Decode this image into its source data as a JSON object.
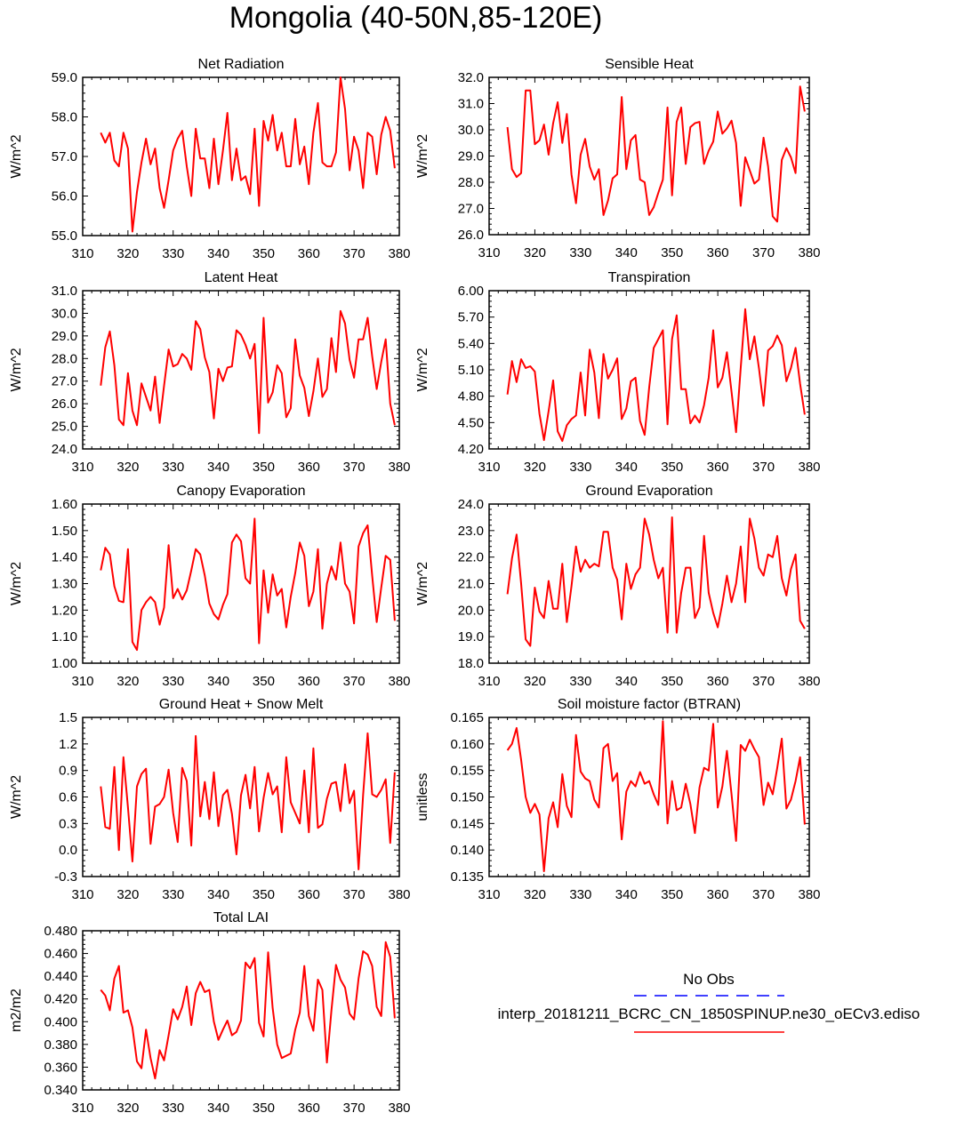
{
  "title": "Mongolia (40-50N,85-120E)",
  "colors": {
    "model": "#ff0000",
    "obs": "#0000ff",
    "frame": "#000000"
  },
  "legend": {
    "obs_label": "No Obs",
    "model_label": "interp_20181211_BCRC_CN_1850SPINUP.ne30_oECv3.ediso"
  },
  "chart_data": [
    {
      "type": "line",
      "title": "Net Radiation",
      "ylabel": "W/m^2",
      "xlim": [
        310,
        380
      ],
      "ylim": [
        55.0,
        59.0
      ],
      "xticks": [
        "310",
        "320",
        "330",
        "340",
        "350",
        "360",
        "370",
        "380"
      ],
      "yticks": [
        "55.0",
        "56.0",
        "57.0",
        "58.0",
        "59.0"
      ],
      "x_start": 314,
      "x_step": 1,
      "series": [
        {
          "values": [
            57.6,
            57.35,
            57.6,
            56.9,
            56.75,
            57.6,
            57.2,
            55.1,
            56.1,
            56.85,
            57.45,
            56.8,
            57.2,
            56.2,
            55.7,
            56.4,
            57.15,
            57.45,
            57.65,
            56.75,
            56.0,
            57.7,
            56.95,
            56.95,
            56.2,
            57.45,
            56.3,
            57.15,
            58.1,
            56.4,
            57.2,
            56.4,
            56.5,
            56.05,
            57.7,
            55.75,
            57.9,
            57.4,
            58.05,
            57.15,
            57.6,
            56.75,
            56.75,
            57.95,
            56.8,
            57.25,
            56.3,
            57.6,
            58.35,
            56.85,
            56.75,
            56.75,
            57.1,
            59.0,
            58.2,
            56.65,
            57.5,
            57.15,
            56.2,
            57.6,
            57.5,
            56.55,
            57.55,
            58.0,
            57.65,
            56.7
          ]
        }
      ]
    },
    {
      "type": "line",
      "title": "Sensible Heat",
      "ylabel": "W/m^2",
      "xlim": [
        310,
        380
      ],
      "ylim": [
        26.0,
        32.0
      ],
      "xticks": [
        "310",
        "320",
        "330",
        "340",
        "350",
        "360",
        "370",
        "380"
      ],
      "yticks": [
        "26.0",
        "27.0",
        "28.0",
        "29.0",
        "30.0",
        "31.0",
        "32.0"
      ],
      "x_start": 314,
      "x_step": 1,
      "series": [
        {
          "values": [
            30.1,
            28.5,
            28.2,
            28.35,
            31.5,
            31.5,
            29.45,
            29.6,
            30.2,
            29.05,
            30.25,
            31.05,
            29.5,
            30.6,
            28.3,
            27.2,
            29.05,
            29.65,
            28.6,
            28.1,
            28.5,
            26.75,
            27.3,
            28.15,
            28.3,
            31.25,
            28.5,
            29.6,
            29.8,
            28.1,
            28.0,
            26.75,
            27.05,
            27.6,
            28.1,
            30.85,
            27.5,
            30.3,
            30.85,
            28.7,
            30.1,
            30.25,
            30.3,
            28.7,
            29.2,
            29.55,
            30.7,
            29.85,
            30.05,
            30.35,
            29.5,
            27.1,
            28.95,
            28.45,
            27.95,
            28.1,
            29.7,
            28.6,
            26.7,
            26.5,
            28.85,
            29.3,
            28.95,
            28.35,
            31.65,
            30.7
          ]
        }
      ]
    },
    {
      "type": "line",
      "title": "Latent Heat",
      "ylabel": "W/m^2",
      "xlim": [
        310,
        380
      ],
      "ylim": [
        24.0,
        31.0
      ],
      "xticks": [
        "310",
        "320",
        "330",
        "340",
        "350",
        "360",
        "370",
        "380"
      ],
      "yticks": [
        "24.0",
        "25.0",
        "26.0",
        "27.0",
        "28.0",
        "29.0",
        "30.0",
        "31.0"
      ],
      "x_start": 314,
      "x_step": 1,
      "series": [
        {
          "values": [
            26.8,
            28.5,
            29.2,
            27.7,
            25.3,
            25.05,
            27.35,
            25.7,
            25.05,
            26.9,
            26.3,
            25.7,
            27.2,
            25.15,
            26.8,
            28.4,
            27.65,
            27.75,
            28.2,
            28.0,
            27.5,
            29.65,
            29.3,
            28.05,
            27.4,
            25.35,
            27.55,
            27.0,
            27.6,
            27.65,
            29.25,
            29.05,
            28.6,
            28.0,
            28.65,
            24.7,
            29.8,
            26.05,
            26.5,
            27.7,
            27.35,
            25.4,
            25.8,
            28.85,
            27.25,
            26.7,
            25.45,
            26.55,
            28.0,
            26.3,
            26.65,
            28.9,
            27.4,
            30.1,
            29.55,
            27.95,
            27.15,
            28.85,
            28.85,
            29.8,
            28.1,
            26.65,
            27.85,
            28.85,
            26.0,
            25.05
          ]
        }
      ]
    },
    {
      "type": "line",
      "title": "Transpiration",
      "ylabel": "W/m^2",
      "xlim": [
        310,
        380
      ],
      "ylim": [
        4.2,
        6.0
      ],
      "xticks": [
        "310",
        "320",
        "330",
        "340",
        "350",
        "360",
        "370",
        "380"
      ],
      "yticks": [
        "4.20",
        "4.50",
        "4.80",
        "5.10",
        "5.40",
        "5.70",
        "6.00"
      ],
      "x_start": 314,
      "x_step": 1,
      "series": [
        {
          "values": [
            4.82,
            5.2,
            4.96,
            5.22,
            5.12,
            5.14,
            5.08,
            4.6,
            4.3,
            4.63,
            4.98,
            4.4,
            4.29,
            4.47,
            4.54,
            4.58,
            5.07,
            4.58,
            5.33,
            5.07,
            4.55,
            5.28,
            5.0,
            5.1,
            5.23,
            4.54,
            4.66,
            4.97,
            5.01,
            4.52,
            4.36,
            4.9,
            5.35,
            5.45,
            5.55,
            4.48,
            5.45,
            5.72,
            4.88,
            4.88,
            4.49,
            4.58,
            4.5,
            4.7,
            5.01,
            5.55,
            4.9,
            5.01,
            5.3,
            4.85,
            4.39,
            5.12,
            5.79,
            5.22,
            5.48,
            5.12,
            4.69,
            5.32,
            5.37,
            5.49,
            5.38,
            4.97,
            5.12,
            5.35,
            4.94,
            4.59
          ]
        }
      ]
    },
    {
      "type": "line",
      "title": "Canopy Evaporation",
      "ylabel": "W/m^2",
      "xlim": [
        310,
        380
      ],
      "ylim": [
        1.0,
        1.6
      ],
      "xticks": [
        "310",
        "320",
        "330",
        "340",
        "350",
        "360",
        "370",
        "380"
      ],
      "yticks": [
        "1.00",
        "1.10",
        "1.20",
        "1.30",
        "1.40",
        "1.50",
        "1.60"
      ],
      "x_start": 314,
      "x_step": 1,
      "series": [
        {
          "values": [
            1.35,
            1.435,
            1.41,
            1.29,
            1.235,
            1.23,
            1.43,
            1.08,
            1.05,
            1.2,
            1.23,
            1.25,
            1.23,
            1.145,
            1.21,
            1.445,
            1.245,
            1.28,
            1.24,
            1.275,
            1.35,
            1.43,
            1.41,
            1.33,
            1.225,
            1.185,
            1.165,
            1.22,
            1.26,
            1.455,
            1.485,
            1.46,
            1.32,
            1.3,
            1.545,
            1.075,
            1.35,
            1.19,
            1.335,
            1.255,
            1.28,
            1.135,
            1.25,
            1.34,
            1.455,
            1.405,
            1.215,
            1.27,
            1.43,
            1.13,
            1.3,
            1.365,
            1.315,
            1.455,
            1.3,
            1.27,
            1.15,
            1.44,
            1.49,
            1.52,
            1.33,
            1.155,
            1.285,
            1.405,
            1.39,
            1.16
          ]
        }
      ]
    },
    {
      "type": "line",
      "title": "Ground Evaporation",
      "ylabel": "W/m^2",
      "xlim": [
        310,
        380
      ],
      "ylim": [
        18.0,
        24.0
      ],
      "xticks": [
        "310",
        "320",
        "330",
        "340",
        "350",
        "360",
        "370",
        "380"
      ],
      "yticks": [
        "18.0",
        "19.0",
        "20.0",
        "21.0",
        "22.0",
        "23.0",
        "24.0"
      ],
      "x_start": 314,
      "x_step": 1,
      "series": [
        {
          "values": [
            20.6,
            21.95,
            22.85,
            21.0,
            18.9,
            18.65,
            20.85,
            19.95,
            19.7,
            21.1,
            20.05,
            20.05,
            21.75,
            19.55,
            20.9,
            22.4,
            21.45,
            21.9,
            21.6,
            21.75,
            21.65,
            22.95,
            22.95,
            21.6,
            21.15,
            19.65,
            21.75,
            20.8,
            21.35,
            21.6,
            23.45,
            22.85,
            21.9,
            21.2,
            21.6,
            19.15,
            23.5,
            19.15,
            20.65,
            21.6,
            21.6,
            19.7,
            20.1,
            22.8,
            20.65,
            19.9,
            19.35,
            20.25,
            21.3,
            20.3,
            21.0,
            22.4,
            20.3,
            23.45,
            22.7,
            21.6,
            21.3,
            22.1,
            22.0,
            22.8,
            21.2,
            20.55,
            21.55,
            22.1,
            19.6,
            19.3
          ]
        }
      ]
    },
    {
      "type": "line",
      "title": "Ground Heat + Snow Melt",
      "ylabel": "W/m^2",
      "xlim": [
        310,
        380
      ],
      "ylim": [
        -0.3,
        1.5
      ],
      "xticks": [
        "310",
        "320",
        "330",
        "340",
        "350",
        "360",
        "370",
        "380"
      ],
      "yticks": [
        "-0.3",
        "0.0",
        "0.3",
        "0.6",
        "0.9",
        "1.2",
        "1.5"
      ],
      "x_start": 314,
      "x_step": 1,
      "series": [
        {
          "values": [
            0.72,
            0.26,
            0.24,
            0.94,
            0.0,
            1.05,
            0.48,
            -0.13,
            0.72,
            0.86,
            0.92,
            0.07,
            0.49,
            0.52,
            0.6,
            0.91,
            0.42,
            0.09,
            0.93,
            0.78,
            0.05,
            1.29,
            0.38,
            0.77,
            0.35,
            0.88,
            0.27,
            0.62,
            0.68,
            0.41,
            -0.05,
            0.62,
            0.85,
            0.47,
            0.94,
            0.21,
            0.59,
            0.87,
            0.63,
            0.72,
            0.2,
            1.05,
            0.54,
            0.42,
            0.3,
            0.9,
            0.2,
            1.15,
            0.25,
            0.29,
            0.58,
            0.75,
            0.77,
            0.44,
            0.97,
            0.53,
            0.67,
            -0.22,
            0.62,
            1.32,
            0.63,
            0.6,
            0.68,
            0.8,
            0.08,
            0.88
          ]
        }
      ]
    },
    {
      "type": "line",
      "title": "Soil moisture factor (BTRAN)",
      "ylabel": "unitless",
      "xlim": [
        310,
        380
      ],
      "ylim": [
        0.135,
        0.165
      ],
      "xticks": [
        "310",
        "320",
        "330",
        "340",
        "350",
        "360",
        "370",
        "380"
      ],
      "yticks": [
        "0.135",
        "0.140",
        "0.145",
        "0.150",
        "0.155",
        "0.160",
        "0.165"
      ],
      "x_start": 314,
      "x_step": 1,
      "series": [
        {
          "values": [
            0.1588,
            0.16,
            0.163,
            0.157,
            0.15,
            0.147,
            0.1487,
            0.1467,
            0.136,
            0.146,
            0.149,
            0.1443,
            0.1543,
            0.1483,
            0.1462,
            0.1617,
            0.1548,
            0.1535,
            0.153,
            0.1495,
            0.148,
            0.1592,
            0.16,
            0.153,
            0.1545,
            0.142,
            0.151,
            0.153,
            0.152,
            0.1547,
            0.1525,
            0.153,
            0.1505,
            0.1485,
            0.1643,
            0.145,
            0.153,
            0.1475,
            0.148,
            0.1525,
            0.1487,
            0.1432,
            0.1518,
            0.1555,
            0.155,
            0.1638,
            0.148,
            0.152,
            0.1587,
            0.1505,
            0.1417,
            0.1598,
            0.1587,
            0.1608,
            0.159,
            0.1575,
            0.1485,
            0.1527,
            0.1505,
            0.1555,
            0.161,
            0.1478,
            0.1495,
            0.153,
            0.1575,
            0.1448
          ]
        }
      ]
    },
    {
      "type": "line",
      "title": "Total LAI",
      "ylabel": "m2/m2",
      "xlim": [
        310,
        380
      ],
      "ylim": [
        0.34,
        0.48
      ],
      "xticks": [
        "310",
        "320",
        "330",
        "340",
        "350",
        "360",
        "370",
        "380"
      ],
      "yticks": [
        "0.340",
        "0.360",
        "0.380",
        "0.400",
        "0.420",
        "0.440",
        "0.460",
        "0.480"
      ],
      "x_start": 314,
      "x_step": 1,
      "series": [
        {
          "values": [
            0.428,
            0.423,
            0.41,
            0.438,
            0.449,
            0.408,
            0.41,
            0.395,
            0.365,
            0.359,
            0.393,
            0.368,
            0.35,
            0.375,
            0.366,
            0.388,
            0.411,
            0.402,
            0.413,
            0.431,
            0.397,
            0.425,
            0.435,
            0.426,
            0.428,
            0.4,
            0.384,
            0.393,
            0.401,
            0.388,
            0.391,
            0.401,
            0.452,
            0.447,
            0.456,
            0.399,
            0.387,
            0.461,
            0.412,
            0.38,
            0.368,
            0.37,
            0.372,
            0.393,
            0.408,
            0.449,
            0.405,
            0.392,
            0.437,
            0.428,
            0.364,
            0.41,
            0.45,
            0.437,
            0.43,
            0.407,
            0.402,
            0.438,
            0.462,
            0.459,
            0.449,
            0.413,
            0.405,
            0.47,
            0.457,
            0.403
          ]
        }
      ]
    }
  ]
}
